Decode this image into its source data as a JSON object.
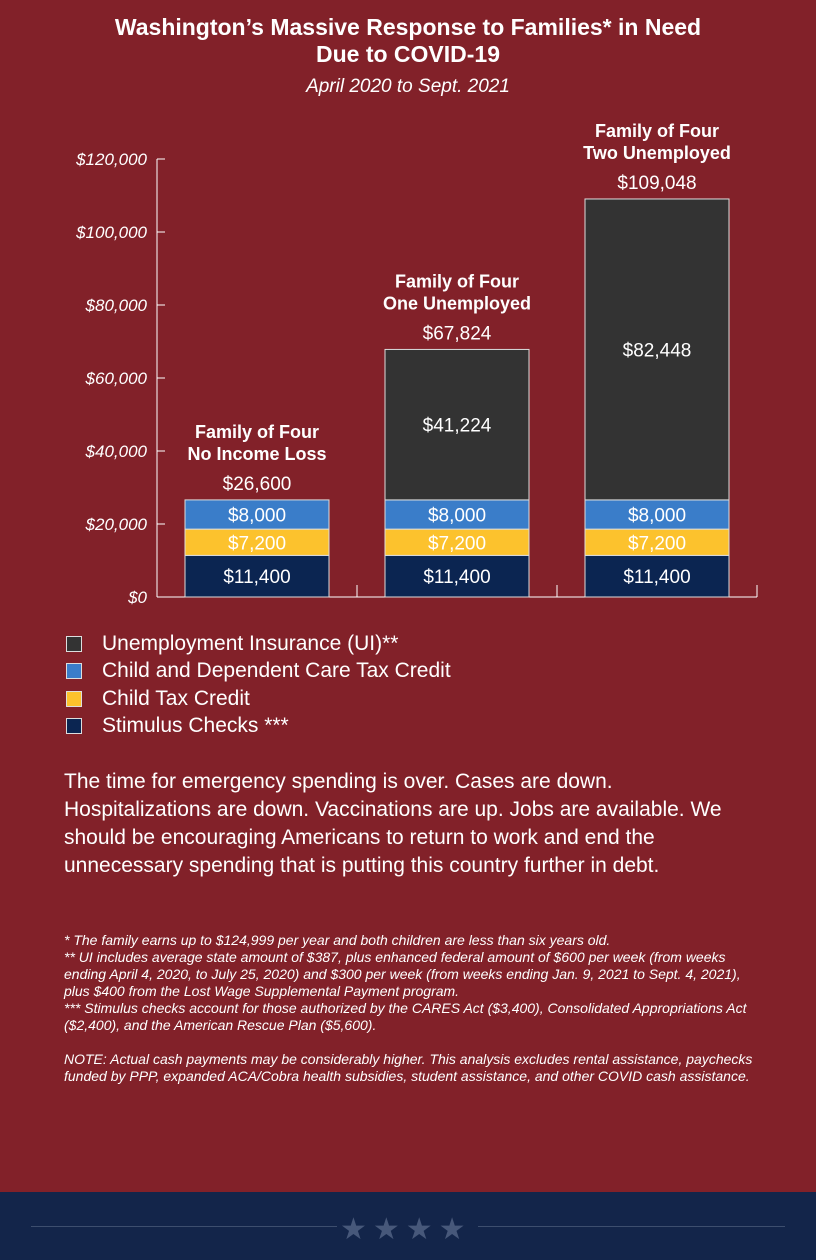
{
  "title_line1": "Washington’s Massive Response to Families* in Need",
  "title_line2": "Due to COVID-19",
  "subtitle": "April 2020 to Sept. 2021",
  "colors": {
    "background": "#822129",
    "ui": "#333333",
    "dependent_care": "#3a7dc9",
    "child_tax": "#fcc22d",
    "stimulus": "#0b2551",
    "footer": "#13254a"
  },
  "chart_data": {
    "type": "bar",
    "stacked": true,
    "categories": [
      [
        "Family of Four",
        "No Income Loss"
      ],
      [
        "Family of Four",
        "One Unemployed"
      ],
      [
        "Family of Four",
        "Two Unemployed"
      ]
    ],
    "totals": [
      "$26,600",
      "$67,824",
      "$109,048"
    ],
    "ylim": [
      0,
      120000
    ],
    "yticks": [
      0,
      20000,
      40000,
      60000,
      80000,
      100000,
      120000
    ],
    "ytick_labels": [
      "$0",
      "$20,000",
      "$40,000",
      "$60,000",
      "$80,000",
      "$100,000",
      "$120,000"
    ],
    "grid": false,
    "series": [
      {
        "name": "Stimulus Checks ***",
        "color": "#0b2551",
        "values": [
          11400,
          11400,
          11400
        ],
        "labels": [
          "$11,400",
          "$11,400",
          "$11,400"
        ]
      },
      {
        "name": "Child Tax Credit",
        "color": "#fcc22d",
        "values": [
          7200,
          7200,
          7200
        ],
        "labels": [
          "$7,200",
          "$7,200",
          "$7,200"
        ]
      },
      {
        "name": "Child and Dependent Care Tax Credit",
        "color": "#3a7dc9",
        "values": [
          8000,
          8000,
          8000
        ],
        "labels": [
          "$8,000",
          "$8,000",
          "$8,000"
        ]
      },
      {
        "name": "Unemployment Insurance (UI)**",
        "color": "#333333",
        "values": [
          0,
          41224,
          82448
        ],
        "labels": [
          "",
          "$41,224",
          "$82,448"
        ]
      }
    ],
    "legend_order": [
      "Unemployment Insurance (UI)**",
      "Child and Dependent Care Tax Credit",
      "Child Tax Credit",
      "Stimulus Checks ***"
    ],
    "legend_placement": "bottom-left"
  },
  "body_text": "The time for emergency spending is over. Cases are down. Hospitalizations are down. Vaccinations are up. Jobs are available. We should be encouraging Americans to return to work and end the unnecessary spending that is putting this country further in debt.",
  "notes": [
    "* The family earns up to $124,999 per year and both children are less than six years old.",
    "** UI includes average state amount of $387, plus enhanced federal amount of $600 per week (from weeks ending April 4, 2020, to July 25, 2020) and $300 per week (from weeks ending Jan. 9, 2021 to Sept. 4, 2021), plus $400 from the Lost Wage Supplemental Payment program.",
    "*** Stimulus checks account for those authorized by the CARES Act ($3,400), Consolidated Appropriations Act ($2,400), and the American Rescue Plan ($5,600)."
  ],
  "note": "NOTE: Actual cash payments may be considerably higher. This analysis excludes rental assistance, paychecks funded by PPP, expanded ACA/Cobra health subsidies, student assistance, and other COVID cash assistance.",
  "footer_icon": "four-stars-icon"
}
